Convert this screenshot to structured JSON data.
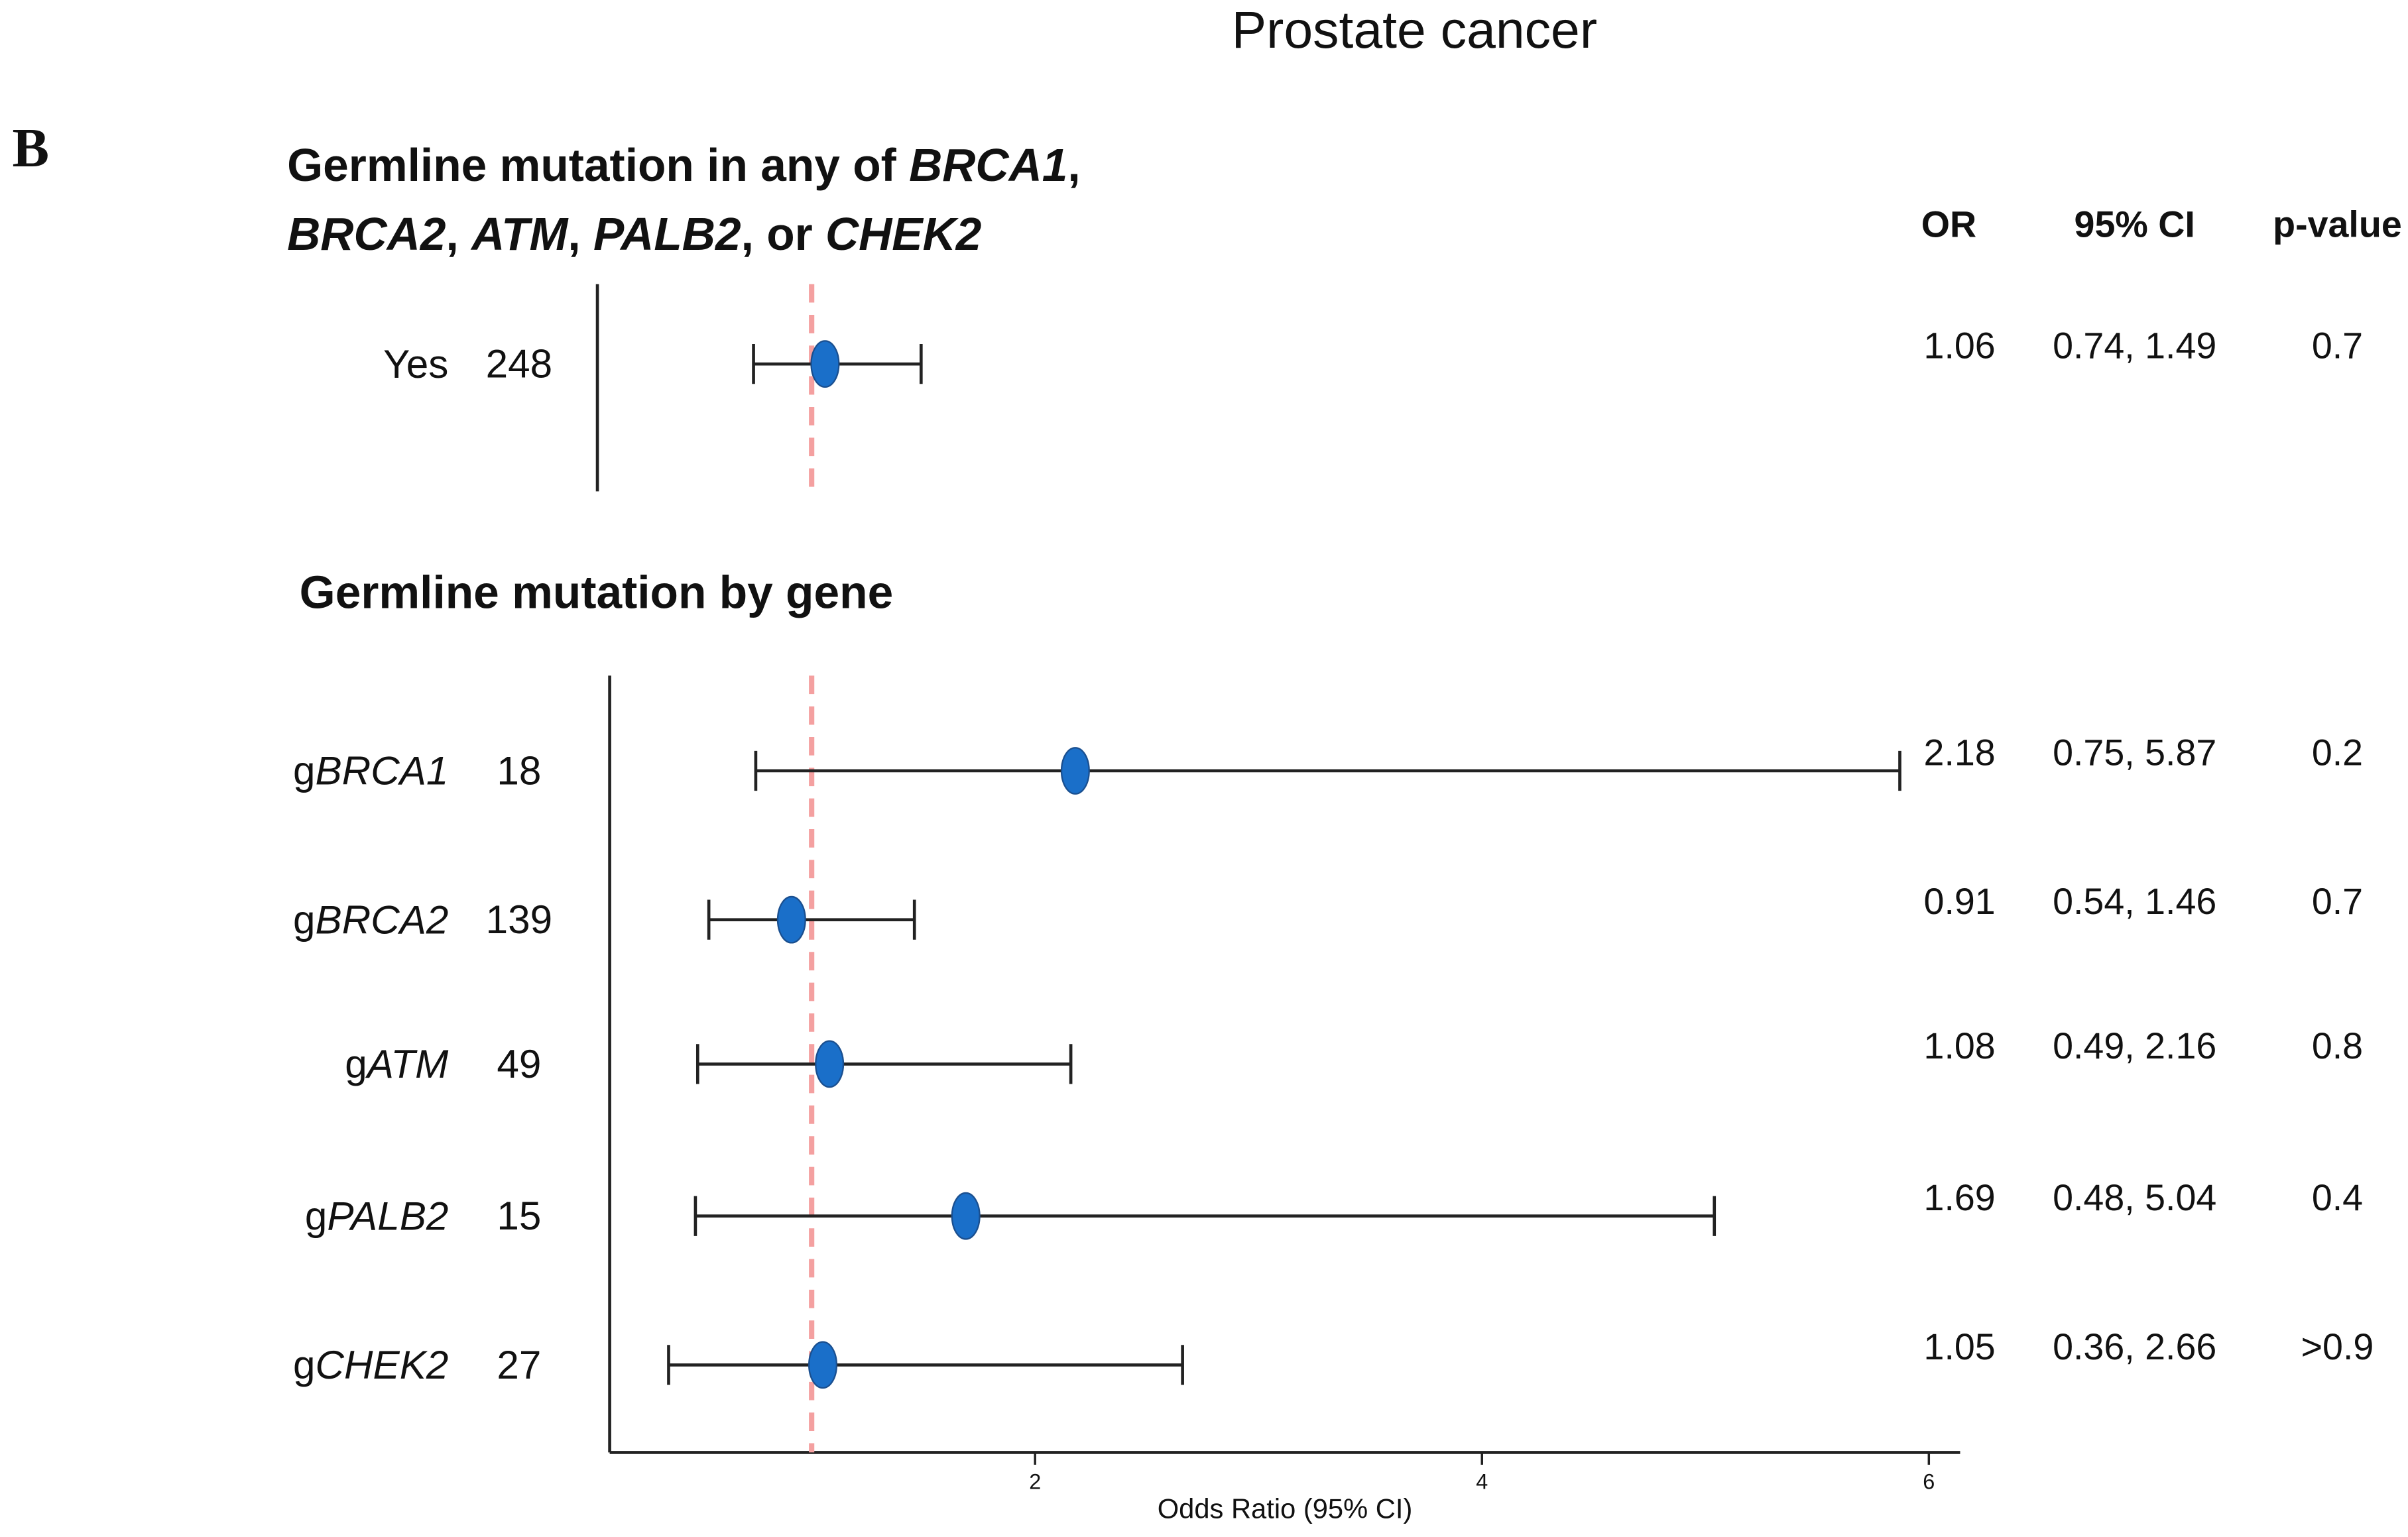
{
  "figure_title": "Prostate cancer",
  "panel_letter": "B",
  "chart_data": [
    {
      "type": "forest",
      "title_lines": [
        [
          {
            "text": "Germline mutation in any of "
          },
          {
            "text": "BRCA1",
            "italic": true
          },
          {
            "text": ","
          }
        ],
        [
          {
            "text": "BRCA2",
            "italic": true
          },
          {
            "text": ", "
          },
          {
            "text": "ATM",
            "italic": true
          },
          {
            "text": ", "
          },
          {
            "text": "PALB2",
            "italic": true
          },
          {
            "text": ", or "
          },
          {
            "text": "CHEK2",
            "italic": true
          }
        ]
      ],
      "columns": [
        "OR",
        "95% CI",
        "p-value"
      ],
      "labels": [
        "Yes"
      ],
      "counts": [
        248
      ],
      "values": [
        1.06
      ],
      "ci_low": [
        0.74
      ],
      "ci_high": [
        1.49
      ],
      "ci_labels": [
        "0.74, 1.49"
      ],
      "p_values": [
        "0.7"
      ],
      "color": "#1a6fc9",
      "reference": 1,
      "reference_color": "#f4a0a0",
      "xlim": [
        0.1,
        6.14
      ]
    },
    {
      "type": "forest",
      "title": "Germline mutation by gene",
      "label_prefix": "g",
      "labels": [
        "BRCA1",
        "BRCA2",
        "ATM",
        "PALB2",
        "CHEK2"
      ],
      "counts": [
        18,
        139,
        49,
        15,
        27
      ],
      "values": [
        2.18,
        0.91,
        1.08,
        1.69,
        1.05
      ],
      "ci_low": [
        0.75,
        0.54,
        0.49,
        0.48,
        0.36
      ],
      "ci_high": [
        5.87,
        1.46,
        2.16,
        5.04,
        2.66
      ],
      "ci_labels": [
        "0.75, 5.87",
        "0.54, 1.46",
        "0.49, 2.16",
        "0.48, 5.04",
        "0.36, 2.66"
      ],
      "p_values": [
        "0.2",
        "0.7",
        "0.8",
        "0.4",
        ">0.9"
      ],
      "color": "#1a6fc9",
      "reference": 1,
      "reference_color": "#f4a0a0",
      "xlim": [
        0.1,
        6.14
      ],
      "xticks": [
        2,
        4,
        6
      ],
      "xlabel": "Odds Ratio (95% CI)"
    }
  ]
}
